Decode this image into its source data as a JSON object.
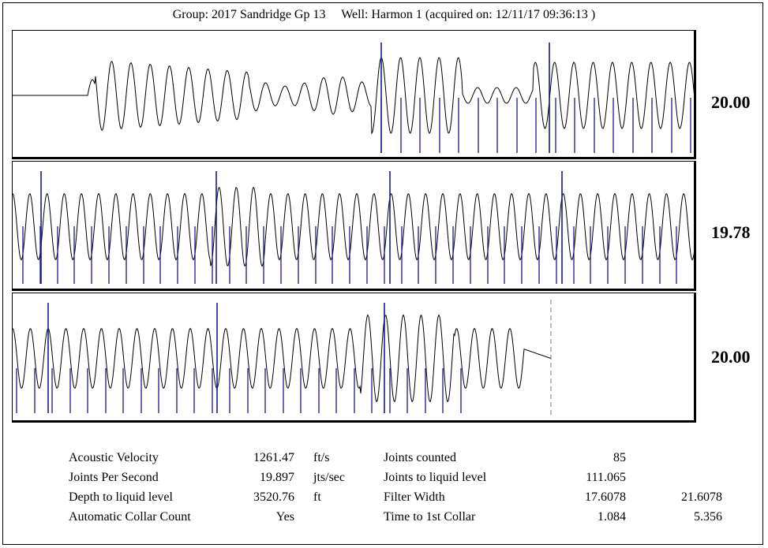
{
  "header": {
    "group": "Group: 2017 Sandridge Gp 13",
    "well": "Well: Harmon 1 (acquired on: 12/11/17 09:36:13 )"
  },
  "colors": {
    "trace": "#000000",
    "collar_marker": "#1a1a8c",
    "end_marker": "#777777"
  },
  "chart_data": [
    {
      "type": "line",
      "panel": 1,
      "label": "20.00",
      "series": [
        {
          "values": "acoustic trace segment 1 with collar markers"
        }
      ]
    },
    {
      "type": "line",
      "panel": 2,
      "label": "19.78",
      "series": [
        {
          "values": "acoustic trace segment 2 with collar markers"
        }
      ]
    },
    {
      "type": "line",
      "panel": 3,
      "label": "20.00",
      "series": [
        {
          "values": "acoustic trace segment 3 with collar markers"
        }
      ]
    }
  ],
  "stats": {
    "acoustic_velocity": {
      "label": "Acoustic Velocity",
      "value": "1261.47",
      "unit": "ft/s"
    },
    "joints_per_second": {
      "label": "Joints Per Second",
      "value": "19.897",
      "unit": "jts/sec"
    },
    "depth_to_liquid": {
      "label": "Depth to liquid level",
      "value": "3520.76",
      "unit": "ft"
    },
    "auto_collar": {
      "label": "Automatic Collar Count",
      "value": "Yes"
    },
    "joints_counted": {
      "label": "Joints counted",
      "value": "85"
    },
    "joints_to_liquid": {
      "label": "Joints to liquid level",
      "value": "111.065"
    },
    "filter_width": {
      "label": "Filter Width",
      "value": "17.6078",
      "value2": "21.6078"
    },
    "time_first_collar": {
      "label": "Time to 1st Collar",
      "value": "1.084",
      "value2": "5.356"
    }
  }
}
